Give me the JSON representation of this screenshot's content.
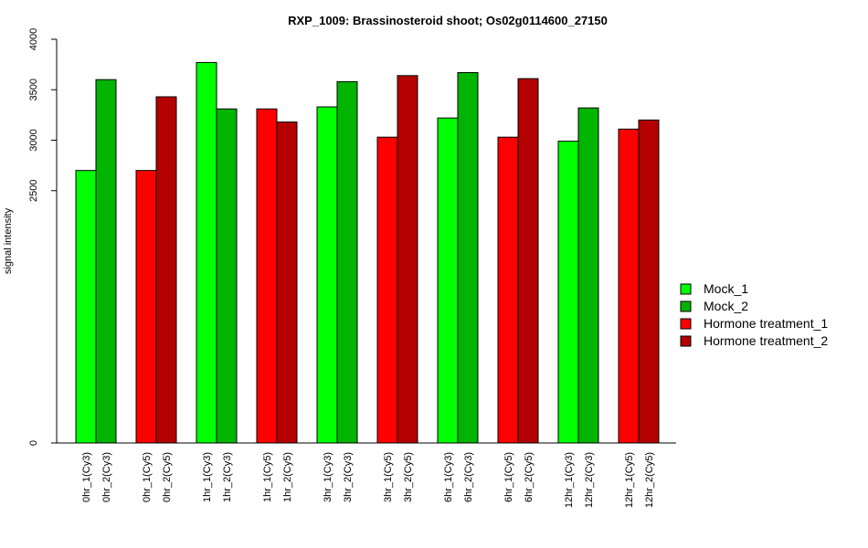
{
  "chart_data": {
    "type": "bar",
    "title": "RXP_1009: Brassinosteroid shoot; Os02g0114600_27150",
    "ylabel": "signal intensity",
    "xlabel": "",
    "ylim": [
      0,
      4000
    ],
    "yticks": [
      0,
      2500,
      3000,
      3500,
      4000
    ],
    "grid": false,
    "legend_position": "right",
    "categories": [
      "0hr_1(Cy3)",
      "0hr_2(Cy3)",
      "0hr_1(Cy5)",
      "0hr_2(Cy5)",
      "1hr_1(Cy3)",
      "1hr_2(Cy3)",
      "1hr_1(Cy5)",
      "1hr_2(Cy5)",
      "3hr_1(Cy3)",
      "3hr_2(Cy3)",
      "3hr_1(Cy5)",
      "3hr_2(Cy5)",
      "6hr_1(Cy3)",
      "6hr_2(Cy3)",
      "6hr_1(Cy5)",
      "6hr_2(Cy5)",
      "12hr_1(Cy3)",
      "12hr_2(Cy3)",
      "12hr_1(Cy5)",
      "12hr_2(Cy5)"
    ],
    "values": [
      2700,
      3600,
      2700,
      3430,
      3770,
      3310,
      3310,
      3180,
      3330,
      3580,
      3030,
      3640,
      3220,
      3670,
      3030,
      3610,
      2990,
      3320,
      3110,
      3200
    ],
    "bar_series": [
      "Mock_1",
      "Mock_2",
      "Hormone treatment_1",
      "Hormone treatment_2",
      "Mock_1",
      "Mock_2",
      "Hormone treatment_1",
      "Hormone treatment_2",
      "Mock_1",
      "Mock_2",
      "Hormone treatment_1",
      "Hormone treatment_2",
      "Mock_1",
      "Mock_2",
      "Hormone treatment_1",
      "Hormone treatment_2",
      "Mock_1",
      "Mock_2",
      "Hormone treatment_1",
      "Hormone treatment_2"
    ],
    "legend": [
      {
        "name": "Mock_1",
        "color": "#00ff00"
      },
      {
        "name": "Mock_2",
        "color": "#00b400"
      },
      {
        "name": "Hormone treatment_1",
        "color": "#ff0000"
      },
      {
        "name": "Hormone treatment_2",
        "color": "#b40000"
      }
    ]
  }
}
